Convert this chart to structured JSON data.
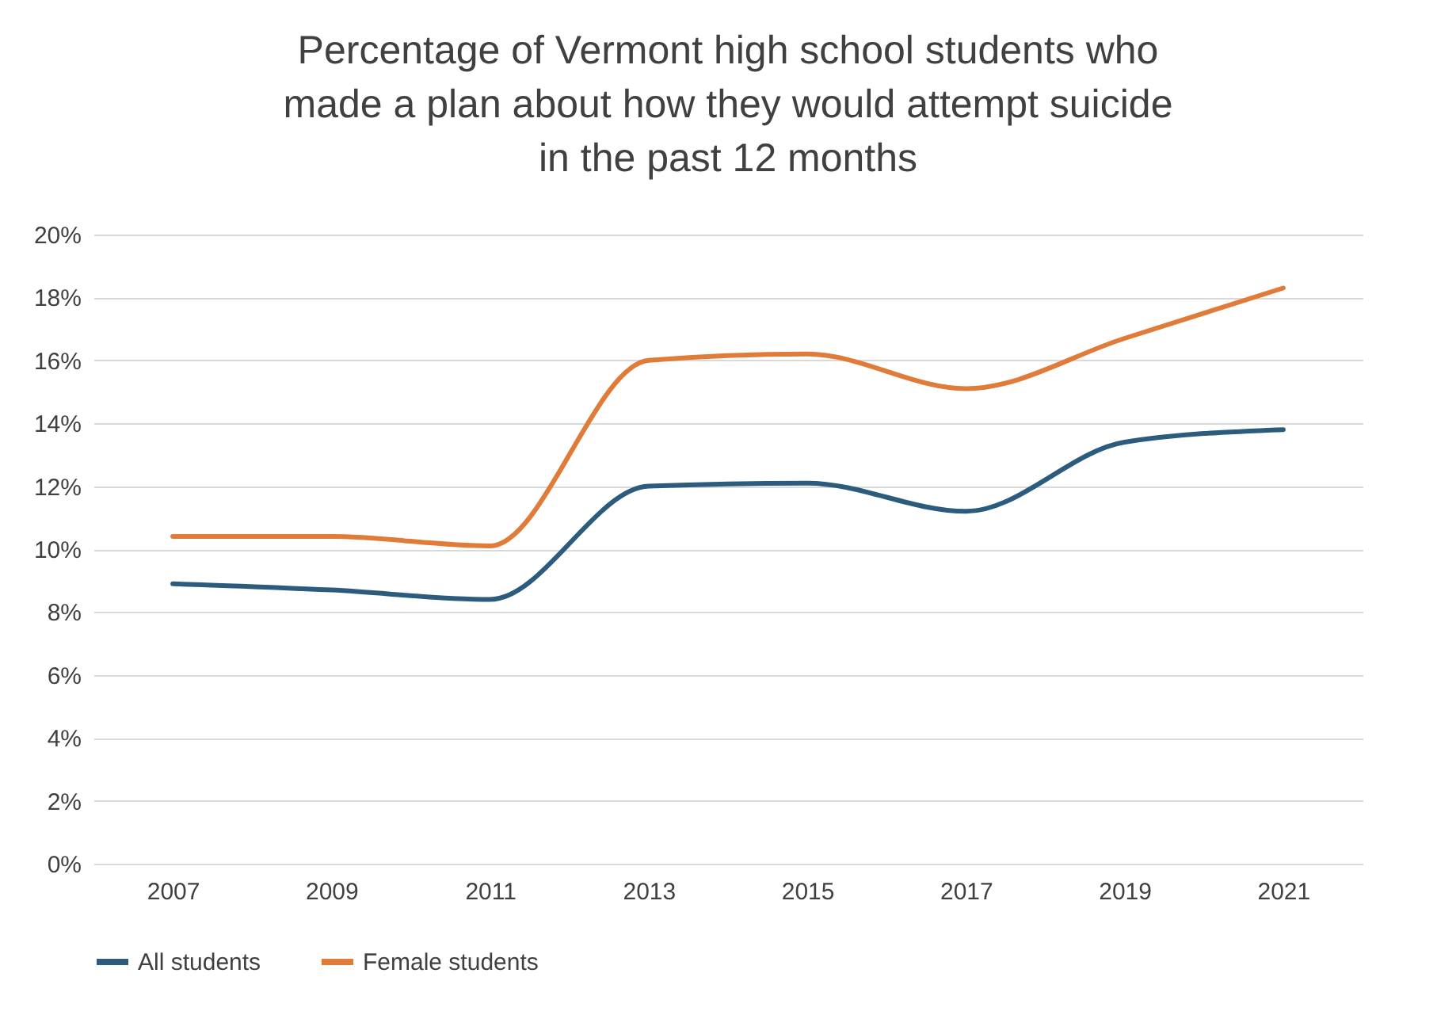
{
  "chart_data": {
    "type": "line",
    "title": "Percentage of Vermont high school students who made a plan about how they would attempt suicide in the past 12 months",
    "categories": [
      "2007",
      "2009",
      "2011",
      "2013",
      "2015",
      "2017",
      "2019",
      "2021"
    ],
    "series": [
      {
        "name": "All students",
        "color": "#2b5c7e",
        "values": [
          8.9,
          8.7,
          8.4,
          12.0,
          12.1,
          11.2,
          13.4,
          13.8
        ]
      },
      {
        "name": "Female students",
        "color": "#e07b39",
        "values": [
          10.4,
          10.4,
          10.1,
          16.0,
          16.2,
          15.1,
          16.7,
          18.3
        ]
      }
    ],
    "ylim": [
      0,
      20
    ],
    "yticks": [
      {
        "value": 0,
        "label": "0%"
      },
      {
        "value": 2,
        "label": "2%"
      },
      {
        "value": 4,
        "label": "4%"
      },
      {
        "value": 6,
        "label": "6%"
      },
      {
        "value": 8,
        "label": "8%"
      },
      {
        "value": 10,
        "label": "10%"
      },
      {
        "value": 12,
        "label": "12%"
      },
      {
        "value": 14,
        "label": "14%"
      },
      {
        "value": 16,
        "label": "16%"
      },
      {
        "value": 18,
        "label": "18%"
      },
      {
        "value": 20,
        "label": "20%"
      }
    ],
    "grid": "y",
    "legend": "bottom",
    "marker": "none",
    "line_style": "solid"
  }
}
